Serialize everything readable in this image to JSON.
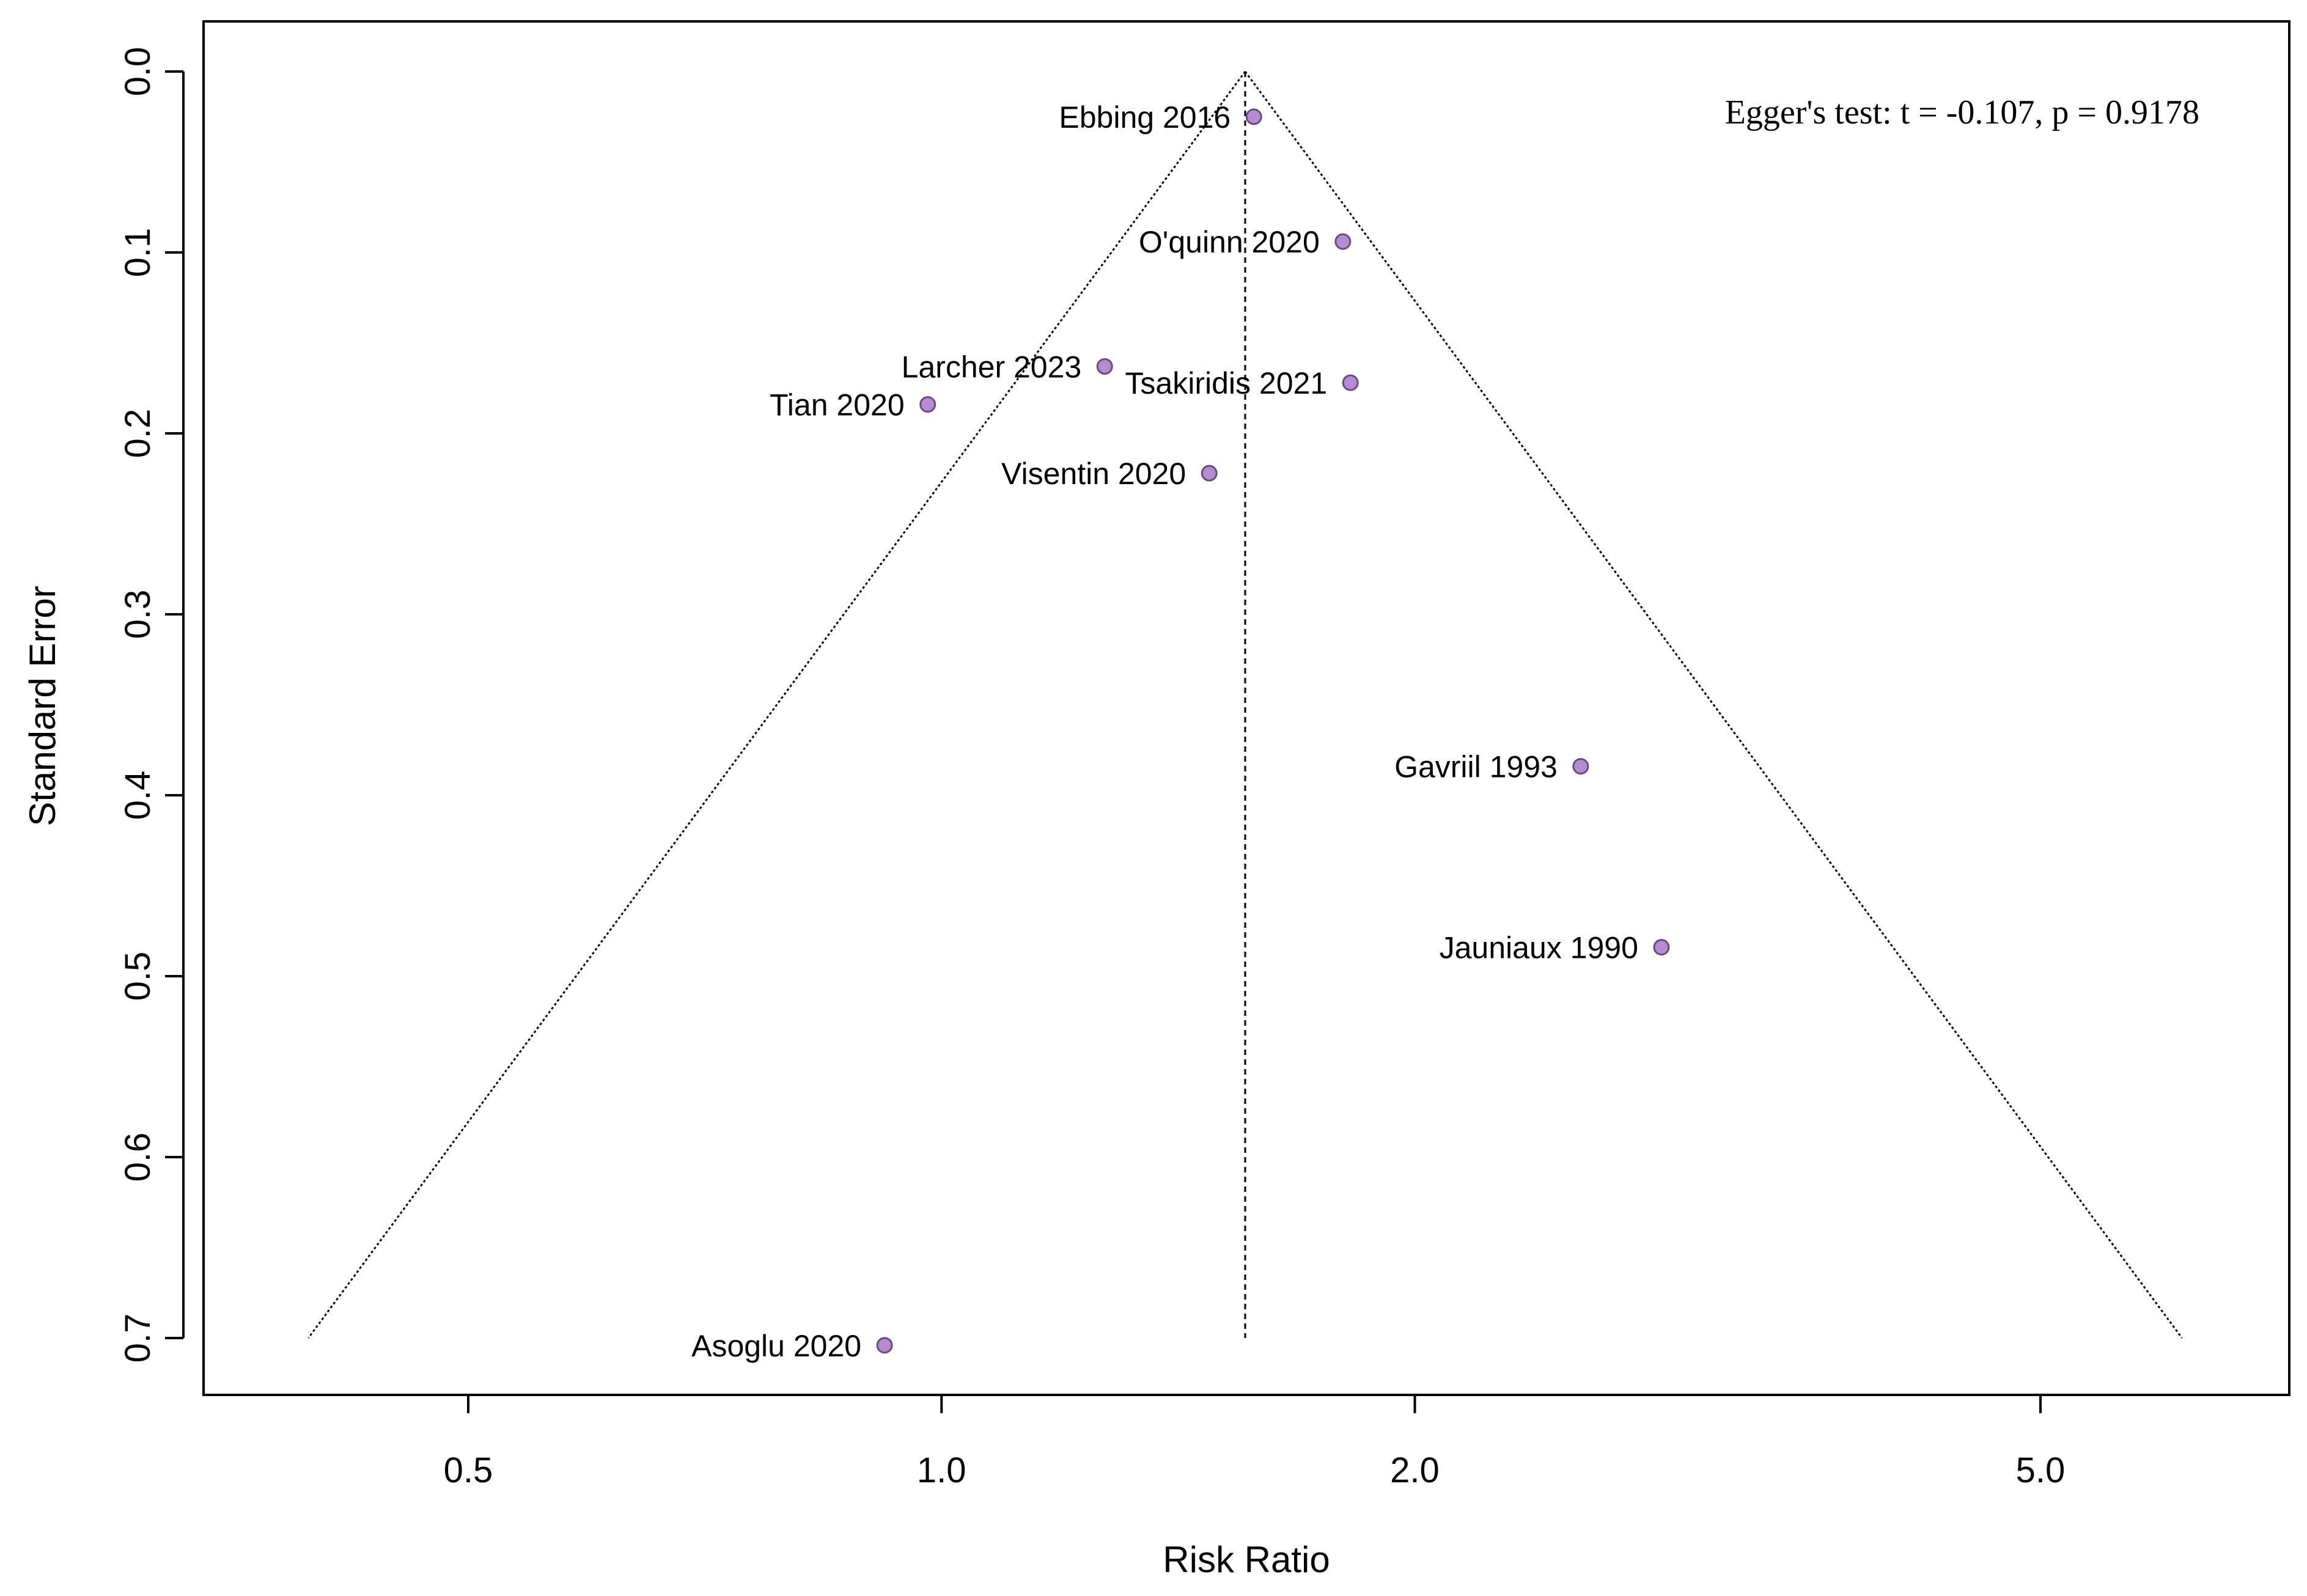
{
  "chart_data": {
    "type": "scatter",
    "subtype": "funnel",
    "title": "",
    "xlabel": "Risk Ratio",
    "ylabel": "Standard Error",
    "x_scale": "log",
    "xlim": [
      0.43,
      7.0
    ],
    "ylim": [
      0.0,
      0.7
    ],
    "y_reversed": true,
    "x_ticks": [
      {
        "value": 0.5,
        "label": "0.5"
      },
      {
        "value": 1.0,
        "label": "1.0"
      },
      {
        "value": 2.0,
        "label": "2.0"
      },
      {
        "value": 5.0,
        "label": "5.0"
      }
    ],
    "y_ticks": [
      {
        "value": 0.0,
        "label": "0.0"
      },
      {
        "value": 0.1,
        "label": "0.1"
      },
      {
        "value": 0.2,
        "label": "0.2"
      },
      {
        "value": 0.3,
        "label": "0.3"
      },
      {
        "value": 0.4,
        "label": "0.4"
      },
      {
        "value": 0.5,
        "label": "0.5"
      },
      {
        "value": 0.6,
        "label": "0.6"
      },
      {
        "value": 0.7,
        "label": "0.7"
      }
    ],
    "pooled_estimate": 1.56,
    "funnel_se_max": 0.7,
    "points": [
      {
        "label": "Ebbing 2016",
        "x": 1.58,
        "y": 0.025
      },
      {
        "label": "O'quinn 2020",
        "x": 1.8,
        "y": 0.094
      },
      {
        "label": "Larcher 2023",
        "x": 1.27,
        "y": 0.163
      },
      {
        "label": "Tsakiridis 2021",
        "x": 1.82,
        "y": 0.172
      },
      {
        "label": "Tian 2020",
        "x": 0.98,
        "y": 0.184
      },
      {
        "label": "Visentin 2020",
        "x": 1.48,
        "y": 0.222
      },
      {
        "label": "Gavriil 1993",
        "x": 2.55,
        "y": 0.384
      },
      {
        "label": "Jauniaux 1990",
        "x": 2.87,
        "y": 0.484
      },
      {
        "label": "Asoglu 2020",
        "x": 0.92,
        "y": 0.704
      }
    ],
    "annotation": "Egger's test: t = -0.107, p = 0.9178",
    "point_color": "#b48ccf",
    "point_edge": "#6a4a80",
    "grid": false,
    "legend": "none"
  }
}
